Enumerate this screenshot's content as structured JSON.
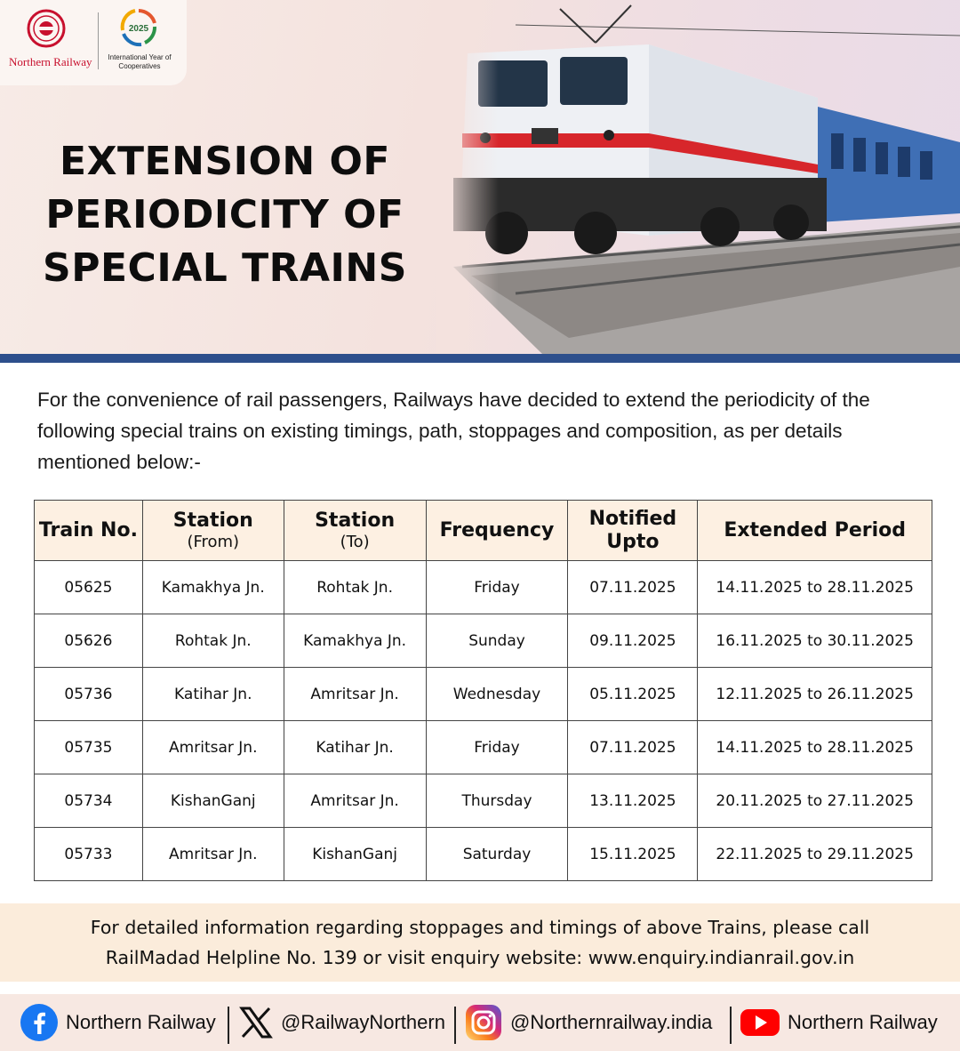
{
  "brand": {
    "org_name": "Northern Railway",
    "iyc_year": "2025",
    "iyc_name": "International Year of Cooperatives",
    "accent": "#c8102e",
    "rule_color": "#2d4f8c"
  },
  "headline": {
    "line1": "EXTENSION OF",
    "line2": "PERIODICITY OF",
    "line3": "SPECIAL TRAINS"
  },
  "intro": "For the convenience of rail passengers, Railways have decided to extend the periodicity of the following special trains on existing timings, path, stoppages and composition, as per details mentioned below:-",
  "table": {
    "headers": {
      "train_no": "Train No.",
      "station_from": "Station",
      "station_from_sub": "(From)",
      "station_to": "Station",
      "station_to_sub": "(To)",
      "frequency": "Frequency",
      "notified": "Notified",
      "notified_sub": "Upto",
      "extended": "Extended Period"
    },
    "rows": [
      {
        "train": "05625",
        "from": "Kamakhya Jn.",
        "to": "Rohtak Jn.",
        "freq": "Friday",
        "notified": "07.11.2025",
        "period": "14.11.2025 to 28.11.2025"
      },
      {
        "train": "05626",
        "from": "Rohtak Jn.",
        "to": "Kamakhya Jn.",
        "freq": "Sunday",
        "notified": "09.11.2025",
        "period": "16.11.2025 to 30.11.2025"
      },
      {
        "train": "05736",
        "from": "Katihar Jn.",
        "to": "Amritsar Jn.",
        "freq": "Wednesday",
        "notified": "05.11.2025",
        "period": "12.11.2025 to 26.11.2025"
      },
      {
        "train": "05735",
        "from": "Amritsar Jn.",
        "to": "Katihar Jn.",
        "freq": "Friday",
        "notified": "07.11.2025",
        "period": "14.11.2025 to 28.11.2025"
      },
      {
        "train": "05734",
        "from": "KishanGanj",
        "to": "Amritsar Jn.",
        "freq": "Thursday",
        "notified": "13.11.2025",
        "period": "20.11.2025 to 27.11.2025"
      },
      {
        "train": "05733",
        "from": "Amritsar Jn.",
        "to": "KishanGanj",
        "freq": "Saturday",
        "notified": "15.11.2025",
        "period": "22.11.2025 to 29.11.2025"
      }
    ]
  },
  "note": {
    "line1": "For detailed information regarding stoppages and timings of above Trains, please call",
    "line2": "RailMadad Helpline No. 139 or visit enquiry website: www.enquiry.indianrail.gov.in"
  },
  "social": {
    "facebook": "Northern Railway",
    "x": "@RailwayNorthern",
    "instagram": "@Northernrailway.india",
    "youtube": "Northern Railway",
    "icons": [
      "facebook-icon",
      "x-icon",
      "instagram-icon",
      "youtube-icon"
    ]
  }
}
